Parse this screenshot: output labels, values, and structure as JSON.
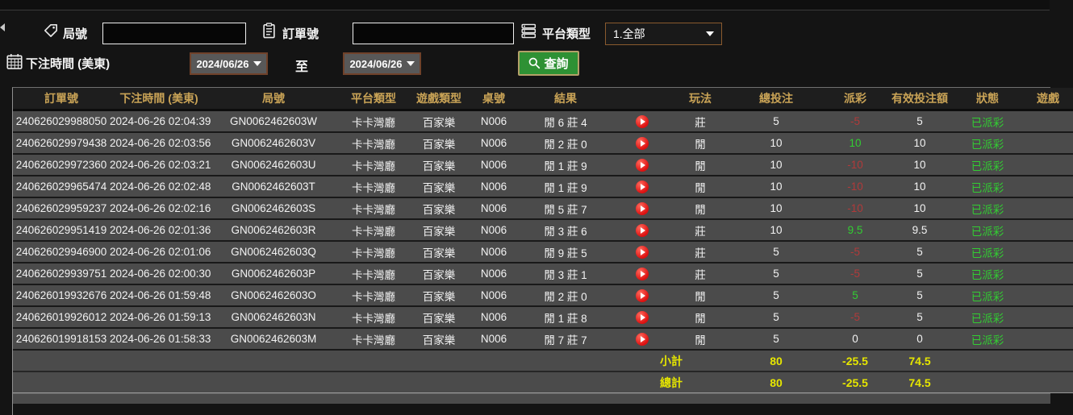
{
  "filters": {
    "game_no_label": "局號",
    "game_no_value": "",
    "order_no_label": "訂單號",
    "order_no_value": "",
    "platform_type_label": "平台類型",
    "platform_type_value": "1.全部",
    "bet_time_label": "下注時間 (美東)",
    "date_from": "2024/06/26",
    "to_label": "至",
    "date_to": "2024/06/26",
    "search_label": "查詢"
  },
  "table": {
    "columns": [
      {
        "key": "order_no",
        "label": "訂單號"
      },
      {
        "key": "bet_time",
        "label": "下注時間 (美東)"
      },
      {
        "key": "game_no",
        "label": "局號"
      },
      {
        "key": "platform",
        "label": "平台類型"
      },
      {
        "key": "game_type",
        "label": "遊戲類型"
      },
      {
        "key": "table_no",
        "label": "桌號"
      },
      {
        "key": "result",
        "label": "結果"
      },
      {
        "key": "replay",
        "label": ""
      },
      {
        "key": "play",
        "label": "玩法"
      },
      {
        "key": "total_bet",
        "label": "總投注"
      },
      {
        "key": "payout",
        "label": "派彩"
      },
      {
        "key": "valid_bet",
        "label": "有效投注額"
      },
      {
        "key": "status",
        "label": "狀態"
      },
      {
        "key": "game",
        "label": "遊戲"
      }
    ],
    "rows": [
      {
        "order_no": "240626029988050",
        "bet_time": "2024-06-26 02:04:39",
        "game_no": "GN0062462603W",
        "platform": "卡卡灣廳",
        "game_type": "百家樂",
        "table_no": "N006",
        "result": "閒 6 莊 4",
        "play": "莊",
        "total_bet": "5",
        "payout": "-5",
        "valid_bet": "5",
        "status": "已派彩",
        "game": ""
      },
      {
        "order_no": "240626029979438",
        "bet_time": "2024-06-26 02:03:56",
        "game_no": "GN0062462603V",
        "platform": "卡卡灣廳",
        "game_type": "百家樂",
        "table_no": "N006",
        "result": "閒 2 莊 0",
        "play": "閒",
        "total_bet": "10",
        "payout": "10",
        "valid_bet": "10",
        "status": "已派彩",
        "game": ""
      },
      {
        "order_no": "240626029972360",
        "bet_time": "2024-06-26 02:03:21",
        "game_no": "GN0062462603U",
        "platform": "卡卡灣廳",
        "game_type": "百家樂",
        "table_no": "N006",
        "result": "閒 1 莊 9",
        "play": "閒",
        "total_bet": "10",
        "payout": "-10",
        "valid_bet": "10",
        "status": "已派彩",
        "game": ""
      },
      {
        "order_no": "240626029965474",
        "bet_time": "2024-06-26 02:02:48",
        "game_no": "GN0062462603T",
        "platform": "卡卡灣廳",
        "game_type": "百家樂",
        "table_no": "N006",
        "result": "閒 1 莊 9",
        "play": "閒",
        "total_bet": "10",
        "payout": "-10",
        "valid_bet": "10",
        "status": "已派彩",
        "game": ""
      },
      {
        "order_no": "240626029959237",
        "bet_time": "2024-06-26 02:02:16",
        "game_no": "GN0062462603S",
        "platform": "卡卡灣廳",
        "game_type": "百家樂",
        "table_no": "N006",
        "result": "閒 5 莊 7",
        "play": "閒",
        "total_bet": "10",
        "payout": "-10",
        "valid_bet": "10",
        "status": "已派彩",
        "game": ""
      },
      {
        "order_no": "240626029951419",
        "bet_time": "2024-06-26 02:01:36",
        "game_no": "GN0062462603R",
        "platform": "卡卡灣廳",
        "game_type": "百家樂",
        "table_no": "N006",
        "result": "閒 3 莊 6",
        "play": "莊",
        "total_bet": "10",
        "payout": "9.5",
        "valid_bet": "9.5",
        "status": "已派彩",
        "game": ""
      },
      {
        "order_no": "240626029946900",
        "bet_time": "2024-06-26 02:01:06",
        "game_no": "GN0062462603Q",
        "platform": "卡卡灣廳",
        "game_type": "百家樂",
        "table_no": "N006",
        "result": "閒 9 莊 5",
        "play": "莊",
        "total_bet": "5",
        "payout": "-5",
        "valid_bet": "5",
        "status": "已派彩",
        "game": ""
      },
      {
        "order_no": "240626029939751",
        "bet_time": "2024-06-26 02:00:30",
        "game_no": "GN0062462603P",
        "platform": "卡卡灣廳",
        "game_type": "百家樂",
        "table_no": "N006",
        "result": "閒 3 莊 1",
        "play": "莊",
        "total_bet": "5",
        "payout": "-5",
        "valid_bet": "5",
        "status": "已派彩",
        "game": ""
      },
      {
        "order_no": "240626019932676",
        "bet_time": "2024-06-26 01:59:48",
        "game_no": "GN0062462603O",
        "platform": "卡卡灣廳",
        "game_type": "百家樂",
        "table_no": "N006",
        "result": "閒 2 莊 0",
        "play": "閒",
        "total_bet": "5",
        "payout": "5",
        "valid_bet": "5",
        "status": "已派彩",
        "game": ""
      },
      {
        "order_no": "240626019926012",
        "bet_time": "2024-06-26 01:59:13",
        "game_no": "GN0062462603N",
        "platform": "卡卡灣廳",
        "game_type": "百家樂",
        "table_no": "N006",
        "result": "閒 1 莊 8",
        "play": "閒",
        "total_bet": "5",
        "payout": "-5",
        "valid_bet": "5",
        "status": "已派彩",
        "game": ""
      },
      {
        "order_no": "240626019918153",
        "bet_time": "2024-06-26 01:58:33",
        "game_no": "GN0062462603M",
        "platform": "卡卡灣廳",
        "game_type": "百家樂",
        "table_no": "N006",
        "result": "閒 7 莊 7",
        "play": "閒",
        "total_bet": "5",
        "payout": "0",
        "valid_bet": "0",
        "status": "已派彩",
        "game": ""
      }
    ],
    "subtotal": {
      "label": "小計",
      "total_bet": "80",
      "payout": "-25.5",
      "valid_bet": "74.5"
    },
    "total": {
      "label": "總計",
      "total_bet": "80",
      "payout": "-25.5",
      "valid_bet": "74.5"
    }
  },
  "colors": {
    "header_gold": "#c9a356",
    "positive_green": "#32cd32",
    "negative_red": "#b03a3a",
    "status_green": "#32cd32",
    "totals_yellow": "#e6e600",
    "button_green": "#2e9134",
    "row_gray": "#4b4b4b"
  }
}
